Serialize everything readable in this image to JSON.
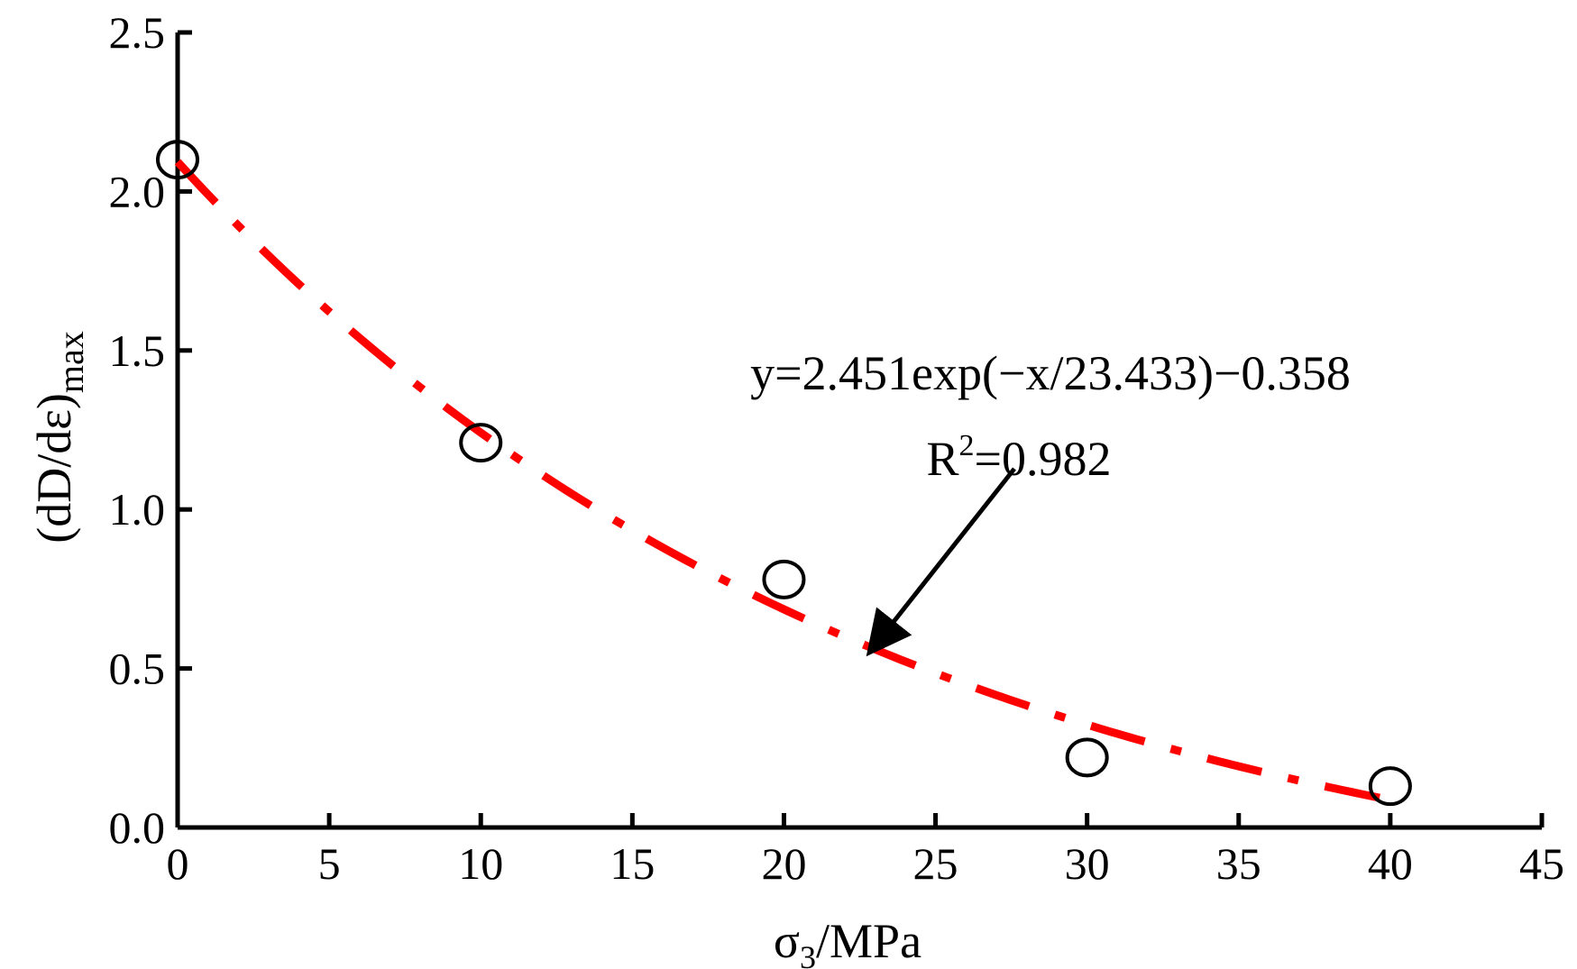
{
  "chart_data": {
    "type": "scatter",
    "xlabel": {
      "main": "σ",
      "sub": "3",
      "rest": "/MPa"
    },
    "ylabel": {
      "main": "(dD/dε)",
      "sub": "max"
    },
    "xlim": [
      0,
      45
    ],
    "ylim": [
      0.0,
      2.5
    ],
    "xticks": [
      "0",
      "5",
      "10",
      "15",
      "20",
      "25",
      "30",
      "35",
      "40",
      "45"
    ],
    "yticks": [
      "0.0",
      "0.5",
      "1.0",
      "1.5",
      "2.0",
      "2.5"
    ],
    "series": [
      {
        "kind": "points",
        "x": [
          0,
          10,
          20,
          30,
          40
        ],
        "y": [
          2.1,
          1.21,
          0.78,
          0.22,
          0.13
        ]
      },
      {
        "kind": "fit",
        "equation": {
          "a": 2.451,
          "b": 23.433,
          "c": -0.358
        },
        "x_range": [
          0,
          40
        ],
        "color": "#ff0000"
      }
    ],
    "annotation": {
      "equation": "y=2.451exp(−x/23.433)−0.358",
      "r2_prefix": "R",
      "r2_sup": "2",
      "r2_value": "=0.982",
      "arrow_target": {
        "x": 22.9,
        "y": 0.56
      }
    },
    "grid": false,
    "legend": "none"
  }
}
